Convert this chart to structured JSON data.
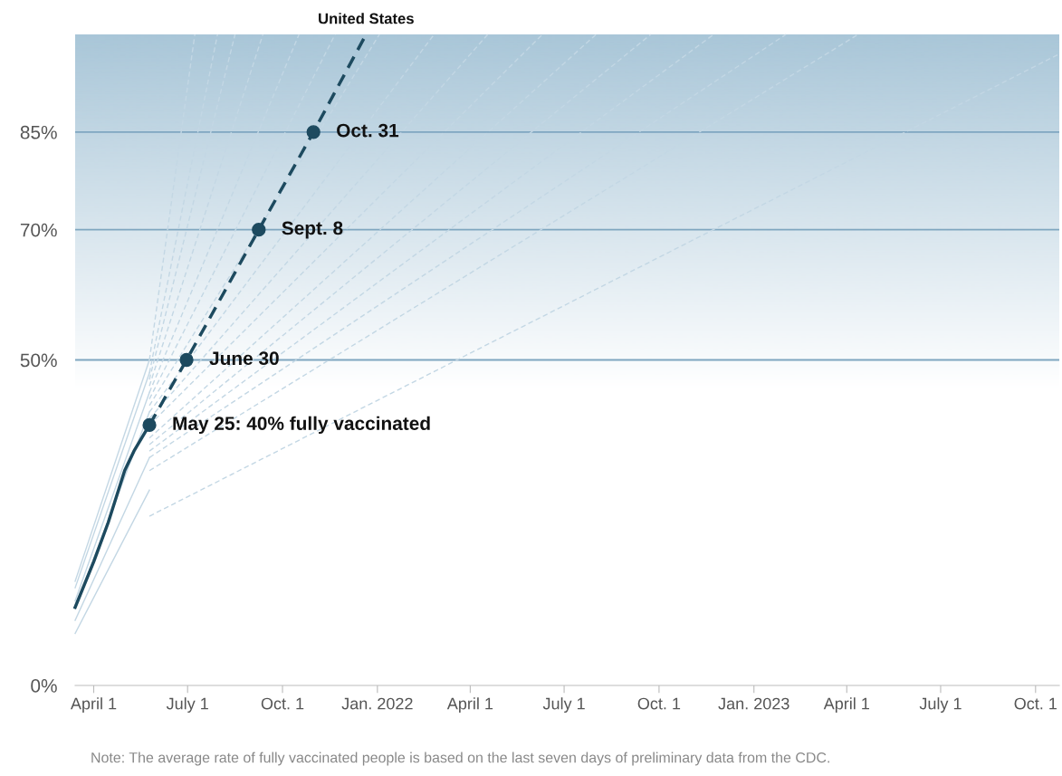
{
  "chart_data": {
    "type": "line",
    "xlim": [
      "2021-03-14",
      "2023-10-24"
    ],
    "ylim": [
      0,
      100
    ],
    "xticks": [
      {
        "value": "2021-04-01",
        "label": "April 1"
      },
      {
        "value": "2021-07-01",
        "label": "July 1"
      },
      {
        "value": "2021-10-01",
        "label": "Oct. 1"
      },
      {
        "value": "2022-01-01",
        "label": "Jan. 2022"
      },
      {
        "value": "2022-04-01",
        "label": "April 1"
      },
      {
        "value": "2022-07-01",
        "label": "July 1"
      },
      {
        "value": "2022-10-01",
        "label": "Oct. 1"
      },
      {
        "value": "2023-01-01",
        "label": "Jan. 2023"
      },
      {
        "value": "2023-04-01",
        "label": "April 1"
      },
      {
        "value": "2023-07-01",
        "label": "July 1"
      },
      {
        "value": "2023-10-01",
        "label": "Oct. 1"
      }
    ],
    "yticks": [
      {
        "value": 0,
        "label": "0%"
      },
      {
        "value": 50,
        "label": "50%"
      },
      {
        "value": 70,
        "label": "70%"
      },
      {
        "value": 85,
        "label": "85%"
      }
    ],
    "grid": "y",
    "bands": [
      {
        "axis": "y",
        "from": 45,
        "to": 100,
        "color": "#a9c6d8"
      }
    ],
    "series": [
      {
        "color": "#c3d7e4",
        "line_style": "solid",
        "x": [
          "2021-03-14",
          "2021-05-25"
        ],
        "values": [
          8,
          30
        ]
      },
      {
        "color": "#c3d7e4",
        "line_style": "solid",
        "x": [
          "2021-03-14",
          "2021-05-25"
        ],
        "values": [
          10,
          35
        ]
      },
      {
        "color": "#c3d7e4",
        "line_style": "solid",
        "x": [
          "2021-03-14",
          "2021-05-25"
        ],
        "values": [
          12,
          42
        ]
      },
      {
        "color": "#c3d7e4",
        "line_style": "solid",
        "x": [
          "2021-03-14",
          "2021-05-25"
        ],
        "values": [
          13,
          45
        ]
      },
      {
        "color": "#c3d7e4",
        "line_style": "solid",
        "x": [
          "2021-03-14",
          "2021-05-25"
        ],
        "values": [
          15,
          48
        ]
      },
      {
        "color": "#c3d7e4",
        "line_style": "solid",
        "x": [
          "2021-03-14",
          "2021-05-25"
        ],
        "values": [
          16,
          50
        ]
      },
      {
        "color": "#c3d7e4",
        "line_style": "dashed",
        "x": [
          "2021-05-25",
          "2021-07-08"
        ],
        "values": [
          50,
          100
        ]
      },
      {
        "color": "#c3d7e4",
        "line_style": "dashed",
        "x": [
          "2021-05-25",
          "2021-07-30"
        ],
        "values": [
          48,
          100
        ]
      },
      {
        "color": "#c3d7e4",
        "line_style": "dashed",
        "x": [
          "2021-05-25",
          "2021-08-16"
        ],
        "values": [
          47,
          100
        ]
      },
      {
        "color": "#c3d7e4",
        "line_style": "dashed",
        "x": [
          "2021-05-25",
          "2021-09-12"
        ],
        "values": [
          46,
          100
        ]
      },
      {
        "color": "#c3d7e4",
        "line_style": "dashed",
        "x": [
          "2021-05-25",
          "2021-10-17"
        ],
        "values": [
          45,
          100
        ]
      },
      {
        "color": "#c3d7e4",
        "line_style": "dashed",
        "x": [
          "2021-05-25",
          "2021-11-21"
        ],
        "values": [
          44,
          100
        ]
      },
      {
        "color": "#c3d7e4",
        "line_style": "dashed",
        "x": [
          "2021-05-25",
          "2022-01-03"
        ],
        "values": [
          43,
          100
        ]
      },
      {
        "color": "#c3d7e4",
        "line_style": "dashed",
        "x": [
          "2021-05-25",
          "2022-02-25"
        ],
        "values": [
          42,
          100
        ]
      },
      {
        "color": "#c3d7e4",
        "line_style": "dashed",
        "x": [
          "2021-05-25",
          "2022-04-18"
        ],
        "values": [
          41,
          100
        ]
      },
      {
        "color": "#c3d7e4",
        "line_style": "dashed",
        "x": [
          "2021-05-25",
          "2022-06-10"
        ],
        "values": [
          40,
          100
        ]
      },
      {
        "color": "#c3d7e4",
        "line_style": "dashed",
        "x": [
          "2021-05-25",
          "2022-08-01"
        ],
        "values": [
          38,
          100
        ]
      },
      {
        "color": "#c3d7e4",
        "line_style": "dashed",
        "x": [
          "2021-05-25",
          "2022-09-23"
        ],
        "values": [
          37,
          100
        ]
      },
      {
        "color": "#c3d7e4",
        "line_style": "dashed",
        "x": [
          "2021-05-25",
          "2022-11-23"
        ],
        "values": [
          36,
          100
        ]
      },
      {
        "color": "#c3d7e4",
        "line_style": "dashed",
        "x": [
          "2021-05-25",
          "2023-02-01"
        ],
        "values": [
          35,
          100
        ]
      },
      {
        "color": "#c3d7e4",
        "line_style": "dashed",
        "x": [
          "2021-05-25",
          "2023-04-12"
        ],
        "values": [
          33,
          100
        ]
      },
      {
        "color": "#c3d7e4",
        "line_style": "dashed",
        "x": [
          "2021-05-25",
          "2023-10-24"
        ],
        "values": [
          26,
          97
        ]
      },
      {
        "color": "#1d4a5f",
        "line_style": "solid",
        "x": [
          "2021-03-14",
          "2021-04-01",
          "2021-04-15",
          "2021-05-01",
          "2021-05-10",
          "2021-05-25"
        ],
        "values": [
          12,
          19,
          25,
          33,
          36,
          40
        ]
      },
      {
        "name": "United States",
        "color": "#1d4a5f",
        "line_style": "dashed",
        "x": [
          "2021-05-25",
          "2021-06-30",
          "2021-09-08",
          "2021-10-31",
          "2021-12-21"
        ],
        "values": [
          40,
          50,
          70,
          85,
          100
        ]
      },
      {
        "type": "scatter",
        "marker": "circle",
        "color": "#1d4a5f",
        "x": [
          "2021-05-25",
          "2021-06-30",
          "2021-09-08",
          "2021-10-31"
        ],
        "values": [
          40,
          50,
          70,
          85
        ]
      }
    ],
    "annotations": [
      {
        "text": "May 25: 40% fully vaccinated",
        "x": "2021-05-25",
        "y": 40
      },
      {
        "text": "June 30",
        "x": "2021-06-30",
        "y": 50
      },
      {
        "text": "Sept. 8",
        "x": "2021-09-08",
        "y": 70
      },
      {
        "text": "Oct. 31",
        "x": "2021-10-31",
        "y": 85
      },
      "Note: The average rate of fully vaccinated people is based on the last seven days of preliminary data from the CDC."
    ]
  }
}
